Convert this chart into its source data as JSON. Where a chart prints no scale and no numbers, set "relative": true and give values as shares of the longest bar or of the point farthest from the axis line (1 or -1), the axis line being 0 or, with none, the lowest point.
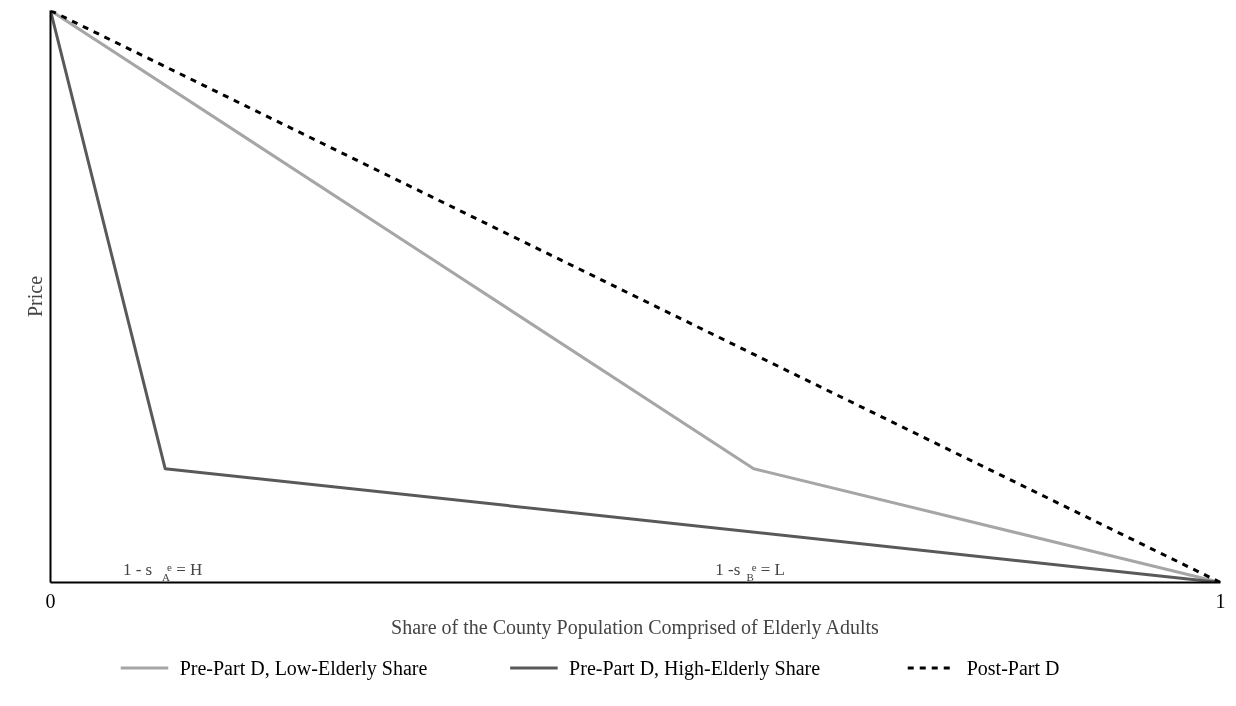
{
  "chart_data": {
    "type": "line",
    "xlabel": "Share of the County Population Comprised of Elderly Adults",
    "ylabel": "Price",
    "relative": true,
    "xlim": [
      0,
      1
    ],
    "xticks": [
      0,
      1
    ],
    "legend": "bottom",
    "tick_labels": "x",
    "series": [
      {
        "name": "Pre-Part D, Low-Elderly Share",
        "color": "#a6a6a6",
        "x": [
          0,
          0.601,
          1
        ],
        "values": [
          1,
          0.199,
          0
        ],
        "line_style": "solid"
      },
      {
        "name": "Pre-Part D, High-Elderly Share",
        "color": "#595959",
        "x": [
          0,
          0.098,
          1
        ],
        "values": [
          1,
          0.199,
          0
        ],
        "line_style": "solid"
      },
      {
        "name": "Post-Part D",
        "color": "#000000",
        "x": [
          0,
          1
        ],
        "values": [
          1,
          0
        ],
        "line_style": "dashed"
      }
    ],
    "annotations": [
      "1 - s$_{A}$$^{e}$ = H",
      "1 -s$_{B}$$^{e}$ = L"
    ]
  }
}
